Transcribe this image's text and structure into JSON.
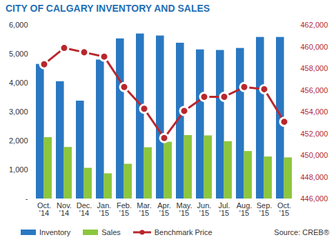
{
  "chart_data": {
    "type": "bar",
    "title": "CITY OF CALGARY INVENTORY AND SALES",
    "categories": [
      "Oct. '14",
      "Nov. '14",
      "Dec. '14",
      "Jan. '15",
      "Feb. '15",
      "Mar. '15",
      "Apr. '15",
      "May. '15",
      "Jun. '15",
      "Jul. '15",
      "Aug. '15",
      "Sep. '15",
      "Oct. '15"
    ],
    "series": [
      {
        "name": "Inventory",
        "color": "#2a78c2",
        "values": [
          4650,
          4050,
          3380,
          4800,
          5530,
          5700,
          5630,
          5380,
          5150,
          5130,
          5200,
          5580,
          5580
        ]
      },
      {
        "name": "Sales",
        "color": "#8cc63e",
        "values": [
          2120,
          1780,
          1060,
          870,
          1200,
          1770,
          1960,
          2190,
          2180,
          1980,
          1640,
          1450,
          1420
        ]
      },
      {
        "name": "Benchmark Price",
        "type": "line",
        "axis": "y2",
        "color": "#b8272c",
        "marker": "circle",
        "values": [
          458400,
          459900,
          459500,
          459100,
          456300,
          454300,
          451600,
          454100,
          455400,
          455400,
          456300,
          456100,
          453100
        ]
      }
    ],
    "ylim": [
      0,
      6000
    ],
    "yticks": [
      {
        "value": 0,
        "label": "-"
      },
      {
        "value": 1000,
        "label": "1,000"
      },
      {
        "value": 2000,
        "label": "2,000"
      },
      {
        "value": 3000,
        "label": "3,000"
      },
      {
        "value": 4000,
        "label": "4,000"
      },
      {
        "value": 5000,
        "label": "5,000"
      },
      {
        "value": 6000,
        "label": "6,000"
      }
    ],
    "y2lim": [
      446000,
      462000
    ],
    "y2ticks": [
      {
        "value": 446000,
        "label": "446,000"
      },
      {
        "value": 448000,
        "label": "448,000"
      },
      {
        "value": 450000,
        "label": "450,000"
      },
      {
        "value": 452000,
        "label": "452,000"
      },
      {
        "value": 454000,
        "label": "454,000"
      },
      {
        "value": 456000,
        "label": "456,000"
      },
      {
        "value": 458000,
        "label": "458,000"
      },
      {
        "value": 460000,
        "label": "460,000"
      },
      {
        "value": 462000,
        "label": "462,000"
      }
    ],
    "legend": "bottom",
    "annotations": [
      "Source: CREB®"
    ]
  }
}
